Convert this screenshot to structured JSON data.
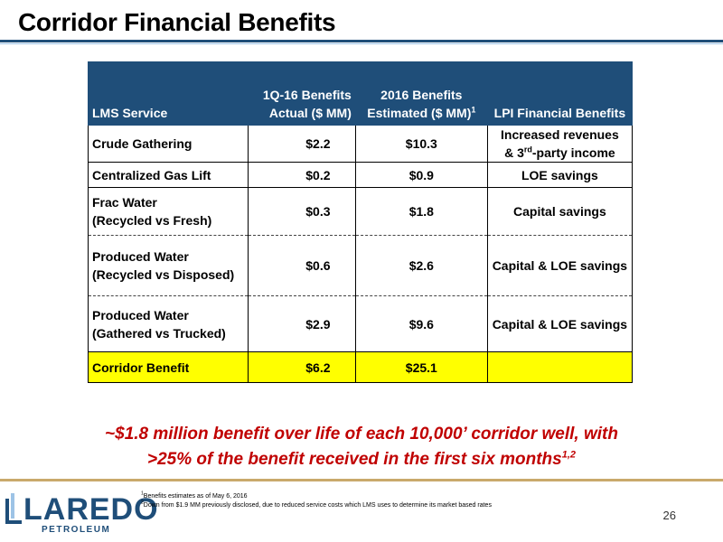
{
  "header": {
    "title": "Corridor Financial Benefits"
  },
  "table": {
    "columns": [
      {
        "line1": "",
        "line2": "LMS Service"
      },
      {
        "line1": "1Q-16 Benefits",
        "line2": "Actual ($ MM)"
      },
      {
        "line1": "2016 Benefits",
        "line2": "Estimated ($ MM)",
        "sup": "1"
      },
      {
        "line1": "",
        "line2": "LPI Financial Benefits"
      }
    ],
    "rows": [
      {
        "service": "Crude Gathering",
        "service2": "",
        "actual": "$2.2",
        "estimated": "$10.3",
        "benefit_a": "Increased revenues",
        "benefit_b": "& 3",
        "benefit_sup": "rd",
        "benefit_c": "-party income"
      },
      {
        "service": "Centralized Gas Lift",
        "service2": "",
        "actual": "$0.2",
        "estimated": "$0.9",
        "benefit": "LOE savings"
      },
      {
        "service": "Frac Water",
        "service2": "(Recycled vs Fresh)",
        "actual": "$0.3",
        "estimated": "$1.8",
        "benefit": "Capital savings"
      },
      {
        "service": "Produced Water",
        "service2": "(Recycled vs Disposed)",
        "actual": "$0.6",
        "estimated": "$2.6",
        "benefit": "Capital & LOE savings"
      },
      {
        "service": "Produced Water",
        "service2": "(Gathered vs Trucked)",
        "actual": "$2.9",
        "estimated": "$9.6",
        "benefit": "Capital & LOE savings"
      }
    ],
    "total": {
      "service": "Corridor Benefit",
      "actual": "$6.2",
      "estimated": "$25.1",
      "benefit": ""
    }
  },
  "callout": {
    "line1": "~$1.8 million benefit over life of each 10,000’ corridor well, with",
    "line2": ">25% of the benefit received in the first six months",
    "sup": "1,2"
  },
  "footnotes": [
    {
      "num": "1",
      "text": "Benefits estimates as of May 6, 2016"
    },
    {
      "num": "2",
      "text": "Down from $1.9 MM previously disclosed, due to reduced service costs which LMS uses to determine its market based rates"
    }
  ],
  "logo": {
    "word": "LAREDO",
    "sub": "PETROLEUM"
  },
  "page_number": "26",
  "colors": {
    "header_blue": "#1f4e79",
    "total_highlight": "#ffff00",
    "callout_red": "#c00000",
    "footer_rule": "#c9a96b"
  }
}
